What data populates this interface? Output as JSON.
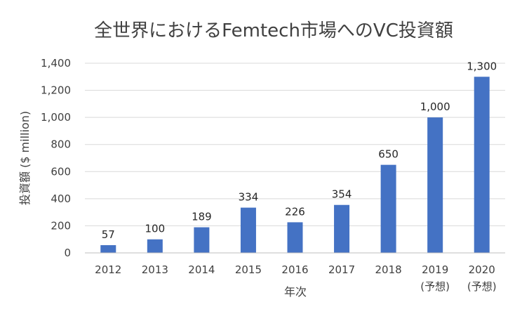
{
  "chart_data": {
    "type": "bar",
    "title": "全世界におけるFemtech市場へのVC投資額",
    "xlabel": "年次",
    "ylabel": "投資額 ($ million)",
    "categories": [
      {
        "line1": "2012",
        "line2": ""
      },
      {
        "line1": "2013",
        "line2": ""
      },
      {
        "line1": "2014",
        "line2": ""
      },
      {
        "line1": "2015",
        "line2": ""
      },
      {
        "line1": "2016",
        "line2": ""
      },
      {
        "line1": "2017",
        "line2": ""
      },
      {
        "line1": "2018",
        "line2": ""
      },
      {
        "line1": "2019",
        "line2": "(予想)"
      },
      {
        "line1": "2020",
        "line2": "(予想)"
      }
    ],
    "values": [
      57,
      100,
      189,
      334,
      226,
      354,
      650,
      1000,
      1300
    ],
    "data_labels": [
      "57",
      "100",
      "189",
      "334",
      "226",
      "354",
      "650",
      "1,000",
      "1,300"
    ],
    "ylim": [
      0,
      1400
    ],
    "yticks": [
      0,
      200,
      400,
      600,
      800,
      1000,
      1200,
      1400
    ],
    "ytick_labels": [
      "0",
      "200",
      "400",
      "600",
      "800",
      "1,000",
      "1,200",
      "1,400"
    ],
    "grid": true,
    "bar_color": "#4472c4"
  }
}
